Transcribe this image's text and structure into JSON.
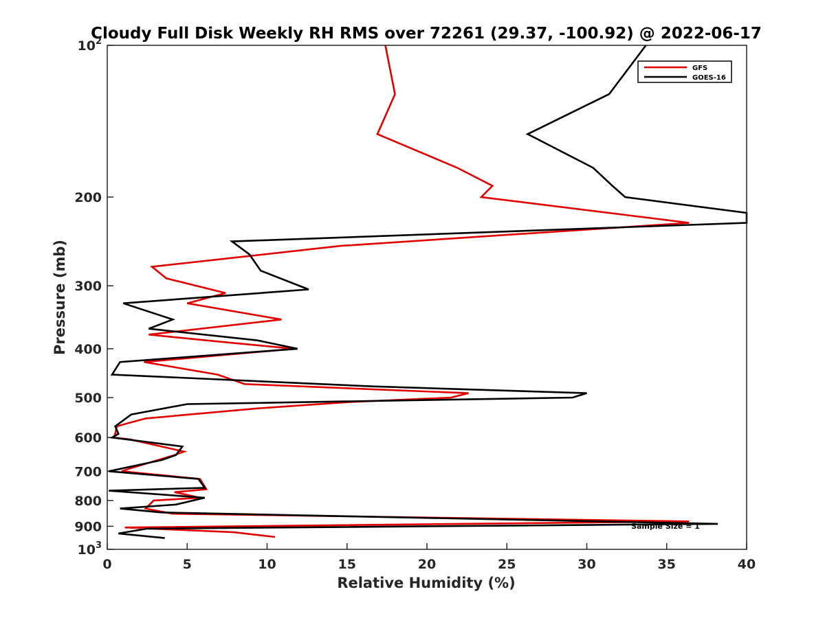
{
  "chart_data": {
    "type": "line",
    "title": "Cloudy Full Disk Weekly RH RMS over 72261 (29.37, -100.92) @ 2022-06-17",
    "xlabel": "Relative Humidity (%)",
    "ylabel": "Pressure (mb)",
    "xlim": [
      0,
      40
    ],
    "ylim": [
      100,
      1000
    ],
    "yscale": "log",
    "yreversed": true,
    "grid": false,
    "legend_placement": "top-right",
    "x_ticks": [
      "0",
      "5",
      "10",
      "15",
      "20",
      "25",
      "30",
      "35",
      "40"
    ],
    "y_ticks": [
      {
        "value": 100,
        "base": "10",
        "exp": "2"
      },
      {
        "value": 200,
        "label": "200"
      },
      {
        "value": 300,
        "label": "300"
      },
      {
        "value": 400,
        "label": "400"
      },
      {
        "value": 500,
        "label": "500"
      },
      {
        "value": 600,
        "label": "600"
      },
      {
        "value": 700,
        "label": "700"
      },
      {
        "value": 800,
        "label": "800"
      },
      {
        "value": 900,
        "label": "900"
      },
      {
        "value": 1000,
        "base": "10",
        "exp": "3"
      }
    ],
    "series": [
      {
        "name": "GFS",
        "color": "#e00000",
        "points": [
          [
            17.4,
            100
          ],
          [
            18.0,
            125
          ],
          [
            16.9,
            150
          ],
          [
            21.9,
            175
          ],
          [
            24.1,
            190
          ],
          [
            23.4,
            200
          ],
          [
            36.4,
            225
          ],
          [
            14.6,
            250
          ],
          [
            2.8,
            275
          ],
          [
            3.7,
            290
          ],
          [
            7.4,
            310
          ],
          [
            5.0,
            325
          ],
          [
            10.9,
            350
          ],
          [
            2.6,
            375
          ],
          [
            6.2,
            385
          ],
          [
            11.7,
            400
          ],
          [
            2.3,
            425
          ],
          [
            6.9,
            450
          ],
          [
            8.6,
            470
          ],
          [
            22.6,
            490
          ],
          [
            21.5,
            500
          ],
          [
            15.2,
            510
          ],
          [
            9.5,
            525
          ],
          [
            2.4,
            550
          ],
          [
            0.6,
            570
          ],
          [
            0.5,
            590
          ],
          [
            0.4,
            600
          ],
          [
            1.4,
            605
          ],
          [
            4.8,
            640
          ],
          [
            4.2,
            650
          ],
          [
            1.5,
            690
          ],
          [
            0.9,
            700
          ],
          [
            5.8,
            725
          ],
          [
            6.2,
            760
          ],
          [
            4.2,
            770
          ],
          [
            5.8,
            790
          ],
          [
            2.9,
            800
          ],
          [
            2.4,
            830
          ],
          [
            4.1,
            850
          ],
          [
            36.4,
            880
          ],
          [
            1.1,
            905
          ],
          [
            7.9,
            925
          ],
          [
            10.5,
            945
          ]
        ]
      },
      {
        "name": "GOES-16",
        "color": "#000000",
        "points": [
          [
            33.7,
            100
          ],
          [
            31.4,
            125
          ],
          [
            26.3,
            150
          ],
          [
            30.4,
            175
          ],
          [
            31.6,
            190
          ],
          [
            32.4,
            200
          ],
          [
            40.0,
            215
          ],
          [
            40.0,
            225
          ],
          [
            7.8,
            245
          ],
          [
            8.9,
            260
          ],
          [
            9.6,
            280
          ],
          [
            12.6,
            305
          ],
          [
            1.0,
            325
          ],
          [
            4.1,
            350
          ],
          [
            2.6,
            365
          ],
          [
            9.4,
            385
          ],
          [
            11.9,
            400
          ],
          [
            0.8,
            425
          ],
          [
            0.3,
            450
          ],
          [
            16.6,
            475
          ],
          [
            30.0,
            490
          ],
          [
            29.1,
            500
          ],
          [
            5.0,
            515
          ],
          [
            1.5,
            540
          ],
          [
            0.5,
            570
          ],
          [
            0.7,
            590
          ],
          [
            0.3,
            600
          ],
          [
            4.7,
            625
          ],
          [
            4.3,
            650
          ],
          [
            3.4,
            665
          ],
          [
            0.1,
            700
          ],
          [
            5.7,
            725
          ],
          [
            6.1,
            755
          ],
          [
            0.1,
            765
          ],
          [
            6.1,
            790
          ],
          [
            4.3,
            815
          ],
          [
            0.8,
            830
          ],
          [
            3.4,
            845
          ],
          [
            38.2,
            890
          ],
          [
            2.5,
            910
          ],
          [
            0.7,
            930
          ],
          [
            3.6,
            950
          ]
        ]
      }
    ],
    "annotations": [
      "Sample Size = 1"
    ]
  }
}
